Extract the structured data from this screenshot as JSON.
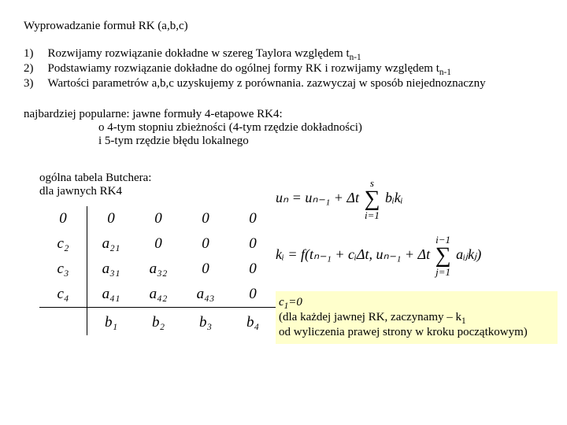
{
  "title": "Wyprowadzanie formuł RK (a,b,c)",
  "list": {
    "n1": "1)",
    "n2": "2)",
    "n3": "3)",
    "t1a": "Rozwijamy rozwiązanie dokładne w szereg Taylora względem t",
    "t1b": "n-1",
    "t2a": "Podstawiamy rozwiązanie dokładne do ogólnej formy RK i rozwijamy względem t",
    "t2b": "n-1",
    "t3": "Wartości parametrów a,b,c uzyskujemy z porównania. zazwyczaj w sposób niejednoznaczny"
  },
  "para": {
    "l1": "najbardziej popularne: jawne formuły 4-etapowe RK4:",
    "l2": "o 4-tym stopniu zbieżności (4-tym rzędzie dokładności)",
    "l3": "i 5-tym rzędzie błędu lokalnego"
  },
  "butcher": {
    "label1": "ogólna tabela Butchera:",
    "label2": "dla jawnych RK4",
    "rows": [
      [
        "0",
        "0",
        "0",
        "0",
        "0"
      ],
      [
        "c₂",
        "a₂₁",
        "0",
        "0",
        "0"
      ],
      [
        "c₃",
        "a₃₁",
        "a₃₂",
        "0",
        "0"
      ],
      [
        "c₄",
        "a₄₁",
        "a₄₂",
        "a₄₃",
        "0"
      ],
      [
        "",
        "b₁",
        "b₂",
        "b₃",
        "b₄"
      ]
    ]
  },
  "formula1": {
    "lhs": "uₙ = uₙ₋₁ + Δt",
    "sumTop": "s",
    "sumBot": "i=1",
    "rhs": "bᵢkᵢ"
  },
  "formula2": {
    "lhs": "kᵢ = f(tₙ₋₁ + cᵢΔt, uₙ₋₁ + Δt",
    "sumTop": "i−1",
    "sumBot": "j=1",
    "rhs": "aᵢⱼkⱼ)"
  },
  "note": {
    "l1a": "c",
    "l1b": "1",
    "l1c": "=0",
    "l2a": "(dla każdej jawnej RK, zaczynamy – k",
    "l2b": "1",
    "l3": " od wyliczenia prawej strony w kroku początkowym)"
  }
}
